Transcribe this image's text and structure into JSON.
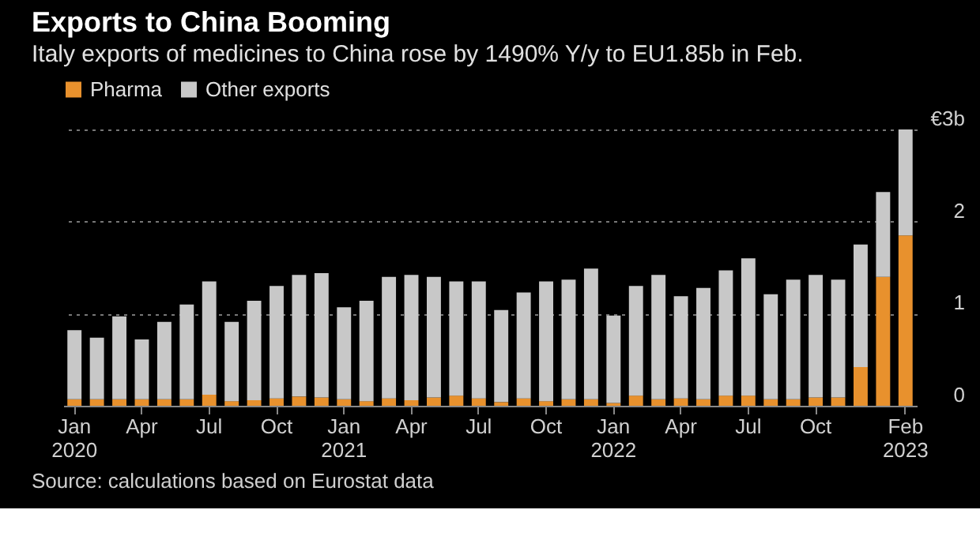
{
  "chart_data": {
    "type": "bar",
    "stacked": true,
    "title": "Exports to China Booming",
    "subtitle": "Italy exports of medicines to China rose by 1490% Y/y to EU1.85b in Feb.",
    "categories": [
      "Jan 2020",
      null,
      null,
      "Apr",
      null,
      null,
      "Jul",
      null,
      null,
      "Oct",
      null,
      null,
      "Jan 2021",
      null,
      null,
      "Apr",
      null,
      null,
      "Jul",
      null,
      null,
      "Oct",
      null,
      null,
      "Jan 2022",
      null,
      null,
      "Apr",
      null,
      null,
      "Jul",
      null,
      null,
      "Oct",
      null,
      null,
      null,
      "Feb 2023"
    ],
    "series": [
      {
        "name": "Pharma",
        "color": "#e8912d",
        "values": [
          0.07,
          0.07,
          0.07,
          0.07,
          0.07,
          0.07,
          0.12,
          0.05,
          0.06,
          0.08,
          0.1,
          0.09,
          0.07,
          0.05,
          0.08,
          0.06,
          0.09,
          0.11,
          0.08,
          0.04,
          0.08,
          0.05,
          0.07,
          0.07,
          0.03,
          0.11,
          0.07,
          0.08,
          0.07,
          0.11,
          0.11,
          0.07,
          0.07,
          0.09,
          0.09,
          0.42,
          1.4,
          1.85
        ]
      },
      {
        "name": "Other exports",
        "color": "#c8c8c8",
        "values": [
          0.75,
          0.67,
          0.9,
          0.65,
          0.84,
          1.03,
          1.23,
          0.86,
          1.08,
          1.22,
          1.32,
          1.35,
          1.0,
          1.09,
          1.32,
          1.36,
          1.31,
          1.24,
          1.27,
          1.0,
          1.15,
          1.3,
          1.3,
          1.42,
          0.95,
          1.19,
          1.35,
          1.11,
          1.21,
          1.36,
          1.49,
          1.14,
          1.3,
          1.33,
          1.28,
          1.33,
          0.92,
          1.15
        ]
      }
    ],
    "ylim": [
      0,
      3
    ],
    "yticks": [
      0,
      1,
      2,
      {
        "value": 3,
        "label": "€3b"
      }
    ],
    "grid": "y",
    "legend": "top left",
    "annotations": [
      "Source: calculations based on Eurostat data"
    ]
  }
}
